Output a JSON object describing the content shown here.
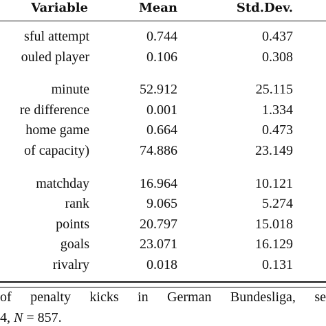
{
  "table": {
    "header": [
      "Variable",
      "Mean",
      "Std.Dev."
    ],
    "groups": [
      [
        [
          "sful attempt",
          "0.744",
          "0.437"
        ],
        [
          "ouled player",
          "0.106",
          "0.308"
        ]
      ],
      [
        [
          "minute",
          "52.912",
          "25.115"
        ],
        [
          "re difference",
          "0.001",
          "1.334"
        ],
        [
          "home game",
          "0.664",
          "0.473"
        ],
        [
          "of capacity)",
          "74.886",
          "23.149"
        ]
      ],
      [
        [
          "matchday",
          "16.964",
          "10.121"
        ],
        [
          "rank",
          "9.065",
          "5.274"
        ],
        [
          "points",
          "20.797",
          "15.018"
        ],
        [
          "goals",
          "23.071",
          "16.129"
        ],
        [
          "rivalry",
          "0.018",
          "0.131"
        ]
      ]
    ]
  },
  "footnote": {
    "line1": "of penalty kicks in German Bundesliga, se",
    "line2": [
      "4, ",
      "N",
      " = 857."
    ]
  }
}
